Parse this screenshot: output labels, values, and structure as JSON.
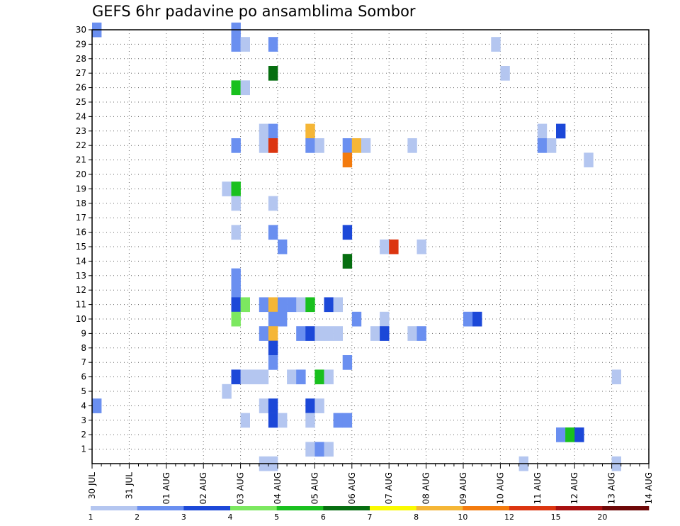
{
  "chart_data": {
    "type": "heatmap",
    "title": "GEFS 6hr padavine po ansamblima Sombor",
    "xlabel": "",
    "ylabel": "",
    "x_tick_labels": [
      "30 JUL",
      "31 JUL",
      "01 AUG",
      "02 AUG",
      "03 AUG",
      "04 AUG",
      "05 AUG",
      "06 AUG",
      "07 AUG",
      "08 AUG",
      "09 AUG",
      "10 AUG",
      "11 AUG",
      "12 AUG",
      "13 AUG",
      "14 AUG"
    ],
    "x_unit": "6-hour step starting 30 JUL 00Z",
    "y_tick_labels": [
      "1",
      "2",
      "3",
      "4",
      "5",
      "6",
      "7",
      "8",
      "9",
      "10",
      "11",
      "12",
      "13",
      "14",
      "15",
      "16",
      "17",
      "18",
      "19",
      "20",
      "21",
      "22",
      "23",
      "24",
      "25",
      "26",
      "27",
      "28",
      "29",
      "30"
    ],
    "ylim": [
      0,
      30
    ],
    "grid": true,
    "colorbar": {
      "labels": [
        "1",
        "2",
        "3",
        "4",
        "5",
        "6",
        "7",
        "8",
        "10",
        "12",
        "15",
        "20"
      ],
      "colors": [
        "#b4c6f0",
        "#6a8ff0",
        "#1c48d8",
        "#7ce860",
        "#19c01e",
        "#066e10",
        "#fafa00",
        "#f5b636",
        "#f37b0e",
        "#dc3510",
        "#a81010",
        "#6e0808"
      ]
    },
    "cells": [
      {
        "t": 0,
        "m": 30,
        "v": 2
      },
      {
        "t": 0,
        "m": 4,
        "v": 2
      },
      {
        "t": 15,
        "m": 30,
        "v": 2
      },
      {
        "t": 15,
        "m": 29,
        "v": 2
      },
      {
        "t": 16,
        "m": 29,
        "v": 1
      },
      {
        "t": 19,
        "m": 29,
        "v": 2
      },
      {
        "t": 43,
        "m": 29,
        "v": 1
      },
      {
        "t": 19,
        "m": 27,
        "v": 6
      },
      {
        "t": 44,
        "m": 27,
        "v": 1
      },
      {
        "t": 15,
        "m": 26,
        "v": 5
      },
      {
        "t": 16,
        "m": 26,
        "v": 1
      },
      {
        "t": 18,
        "m": 23,
        "v": 1
      },
      {
        "t": 19,
        "m": 23,
        "v": 2
      },
      {
        "t": 23,
        "m": 23,
        "v": 8
      },
      {
        "t": 48,
        "m": 23,
        "v": 1
      },
      {
        "t": 50,
        "m": 23,
        "v": 3
      },
      {
        "t": 15,
        "m": 22,
        "v": 2
      },
      {
        "t": 18,
        "m": 22,
        "v": 1
      },
      {
        "t": 19,
        "m": 22,
        "v": 10
      },
      {
        "t": 23,
        "m": 22,
        "v": 2
      },
      {
        "t": 24,
        "m": 22,
        "v": 1
      },
      {
        "t": 27,
        "m": 22,
        "v": 2
      },
      {
        "t": 28,
        "m": 22,
        "v": 8
      },
      {
        "t": 29,
        "m": 22,
        "v": 1
      },
      {
        "t": 34,
        "m": 22,
        "v": 1
      },
      {
        "t": 48,
        "m": 22,
        "v": 2
      },
      {
        "t": 49,
        "m": 22,
        "v": 1
      },
      {
        "t": 27,
        "m": 21,
        "v": 9
      },
      {
        "t": 53,
        "m": 21,
        "v": 1
      },
      {
        "t": 14,
        "m": 19,
        "v": 1
      },
      {
        "t": 15,
        "m": 19,
        "v": 5
      },
      {
        "t": 15,
        "m": 18,
        "v": 1
      },
      {
        "t": 19,
        "m": 18,
        "v": 1
      },
      {
        "t": 15,
        "m": 16,
        "v": 1
      },
      {
        "t": 19,
        "m": 16,
        "v": 2
      },
      {
        "t": 27,
        "m": 16,
        "v": 3
      },
      {
        "t": 20,
        "m": 15,
        "v": 2
      },
      {
        "t": 31,
        "m": 15,
        "v": 1
      },
      {
        "t": 32,
        "m": 15,
        "v": 10
      },
      {
        "t": 35,
        "m": 15,
        "v": 1
      },
      {
        "t": 27,
        "m": 14,
        "v": 6
      },
      {
        "t": 15,
        "m": 13,
        "v": 2
      },
      {
        "t": 15,
        "m": 12,
        "v": 2
      },
      {
        "t": 15,
        "m": 11,
        "v": 3
      },
      {
        "t": 16,
        "m": 11,
        "v": 4
      },
      {
        "t": 18,
        "m": 11,
        "v": 2
      },
      {
        "t": 19,
        "m": 11,
        "v": 8
      },
      {
        "t": 20,
        "m": 11,
        "v": 2
      },
      {
        "t": 21,
        "m": 11,
        "v": 2
      },
      {
        "t": 22,
        "m": 11,
        "v": 1
      },
      {
        "t": 23,
        "m": 11,
        "v": 5
      },
      {
        "t": 25,
        "m": 11,
        "v": 3
      },
      {
        "t": 26,
        "m": 11,
        "v": 1
      },
      {
        "t": 15,
        "m": 10,
        "v": 4
      },
      {
        "t": 19,
        "m": 10,
        "v": 2
      },
      {
        "t": 20,
        "m": 10,
        "v": 2
      },
      {
        "t": 28,
        "m": 10,
        "v": 2
      },
      {
        "t": 31,
        "m": 10,
        "v": 1
      },
      {
        "t": 40,
        "m": 10,
        "v": 2
      },
      {
        "t": 41,
        "m": 10,
        "v": 3
      },
      {
        "t": 18,
        "m": 9,
        "v": 2
      },
      {
        "t": 19,
        "m": 9,
        "v": 8
      },
      {
        "t": 22,
        "m": 9,
        "v": 2
      },
      {
        "t": 23,
        "m": 9,
        "v": 3
      },
      {
        "t": 24,
        "m": 9,
        "v": 1
      },
      {
        "t": 25,
        "m": 9,
        "v": 1
      },
      {
        "t": 26,
        "m": 9,
        "v": 1
      },
      {
        "t": 30,
        "m": 9,
        "v": 1
      },
      {
        "t": 31,
        "m": 9,
        "v": 3
      },
      {
        "t": 34,
        "m": 9,
        "v": 1
      },
      {
        "t": 35,
        "m": 9,
        "v": 2
      },
      {
        "t": 19,
        "m": 8,
        "v": 3
      },
      {
        "t": 19,
        "m": 7,
        "v": 2
      },
      {
        "t": 27,
        "m": 7,
        "v": 2
      },
      {
        "t": 15,
        "m": 6,
        "v": 3
      },
      {
        "t": 16,
        "m": 6,
        "v": 1
      },
      {
        "t": 17,
        "m": 6,
        "v": 1
      },
      {
        "t": 18,
        "m": 6,
        "v": 1
      },
      {
        "t": 21,
        "m": 6,
        "v": 1
      },
      {
        "t": 22,
        "m": 6,
        "v": 2
      },
      {
        "t": 24,
        "m": 6,
        "v": 5
      },
      {
        "t": 25,
        "m": 6,
        "v": 1
      },
      {
        "t": 56,
        "m": 6,
        "v": 1
      },
      {
        "t": 14,
        "m": 5,
        "v": 1
      },
      {
        "t": 18,
        "m": 4,
        "v": 1
      },
      {
        "t": 19,
        "m": 4,
        "v": 3
      },
      {
        "t": 23,
        "m": 4,
        "v": 3
      },
      {
        "t": 24,
        "m": 4,
        "v": 1
      },
      {
        "t": 16,
        "m": 3,
        "v": 1
      },
      {
        "t": 19,
        "m": 3,
        "v": 3
      },
      {
        "t": 20,
        "m": 3,
        "v": 1
      },
      {
        "t": 23,
        "m": 3,
        "v": 1
      },
      {
        "t": 26,
        "m": 3,
        "v": 2
      },
      {
        "t": 27,
        "m": 3,
        "v": 2
      },
      {
        "t": 50,
        "m": 2,
        "v": 2
      },
      {
        "t": 51,
        "m": 2,
        "v": 5
      },
      {
        "t": 52,
        "m": 2,
        "v": 3
      },
      {
        "t": 23,
        "m": 1,
        "v": 1
      },
      {
        "t": 24,
        "m": 1,
        "v": 2
      },
      {
        "t": 25,
        "m": 1,
        "v": 1
      },
      {
        "t": 18,
        "m": 0,
        "v": 1
      },
      {
        "t": 19,
        "m": 0,
        "v": 1
      },
      {
        "t": 46,
        "m": 0,
        "v": 1
      },
      {
        "t": 56,
        "m": 0,
        "v": 1
      }
    ]
  }
}
